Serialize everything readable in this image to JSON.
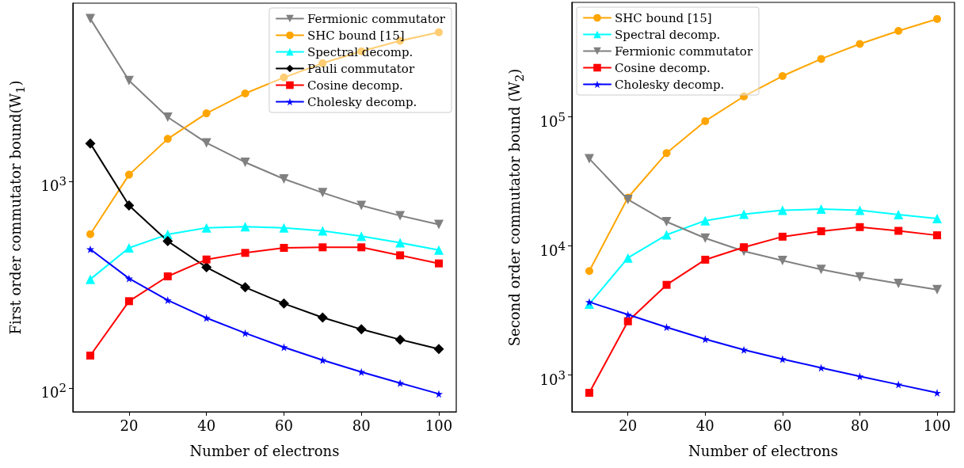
{
  "chart_data": [
    {
      "type": "line",
      "xlabel": "Number of electrons",
      "ylabel": "First order commutator bound(W$_{1}$)",
      "x": [
        10,
        20,
        30,
        40,
        50,
        60,
        70,
        80,
        90,
        100
      ],
      "xlim": [
        5.5,
        104.5
      ],
      "xticks": [
        20,
        40,
        60,
        80,
        100
      ],
      "log": "y",
      "ylim": [
        77,
        7300
      ],
      "yticks": [
        {
          "value": 100,
          "label": "10$^{2}$"
        },
        {
          "value": 1000,
          "label": "10$^{3}$"
        }
      ],
      "grid": false,
      "legend": "top right",
      "series": [
        {
          "name": "Fermionic commutator",
          "color": "#808080",
          "marker": "triangle-down",
          "values": [
            6140,
            3080,
            2050,
            1540,
            1240,
            1030,
            884,
            767,
            684,
            620
          ]
        },
        {
          "name": "SHC bound [15]",
          "color": "#ffa500",
          "marker": "circle",
          "values": [
            557,
            1080,
            1610,
            2140,
            2670,
            3190,
            3740,
            4270,
            4800,
            5280
          ]
        },
        {
          "name": "Spectral decomp.",
          "color": "#00ffff",
          "marker": "triangle",
          "values": [
            337,
            478,
            555,
            598,
            606,
            598,
            578,
            545,
            506,
            467
          ]
        },
        {
          "name": "Pauli commutator",
          "color": "#000000",
          "marker": "diamond",
          "values": [
            1530,
            767,
            515,
            385,
            308,
            257,
            220,
            193,
            172,
            155
          ]
        },
        {
          "name": "Cosine decomp.",
          "color": "#ff0000",
          "marker": "square",
          "values": [
            144,
            264,
            348,
            420,
            452,
            478,
            481,
            481,
            440,
            402
          ]
        },
        {
          "name": "Cholesky decomp.",
          "color": "#0000ff",
          "marker": "star",
          "values": [
            471,
            340,
            267,
            219,
            185,
            158,
            137,
            120,
            106,
            94
          ]
        }
      ]
    },
    {
      "type": "line",
      "xlabel": "Number of electrons",
      "ylabel": "Second order commutator bound (W$_{2}$)",
      "x": [
        10,
        20,
        30,
        40,
        50,
        60,
        70,
        80,
        90,
        100
      ],
      "xlim": [
        5.5,
        104.5
      ],
      "xticks": [
        20,
        40,
        60,
        80,
        100
      ],
      "log": "y",
      "ylim": [
        520,
        770000
      ],
      "yticks": [
        {
          "value": 1000,
          "label": "10$^{3}$"
        },
        {
          "value": 10000,
          "label": "10$^{4}$"
        },
        {
          "value": 100000,
          "label": "10$^{5}$"
        }
      ],
      "grid": false,
      "legend": "top left",
      "series": [
        {
          "name": "SHC bound [15]",
          "color": "#ffa500",
          "marker": "circle",
          "values": [
            6400,
            23700,
            52400,
            92700,
            144000,
            207000,
            281000,
            367000,
            463000,
            573000
          ]
        },
        {
          "name": "Spectral decomp.",
          "color": "#00ffff",
          "marker": "triangle",
          "values": [
            3550,
            8090,
            12200,
            15700,
            17600,
            18900,
            19300,
            18900,
            17500,
            16300
          ]
        },
        {
          "name": "Fermionic commutator",
          "color": "#808080",
          "marker": "triangle-down",
          "values": [
            47400,
            22900,
            15400,
            11500,
            9100,
            7720,
            6580,
            5760,
            5120,
            4590
          ]
        },
        {
          "name": "Cosine decomp.",
          "color": "#ff0000",
          "marker": "square",
          "values": [
            729,
            2610,
            5000,
            7830,
            9780,
            11800,
            13000,
            14000,
            13100,
            12100
          ]
        },
        {
          "name": "Cholesky decomp.",
          "color": "#0000ff",
          "marker": "star",
          "values": [
            3680,
            2940,
            2350,
            1900,
            1570,
            1330,
            1140,
            977,
            845,
            729
          ]
        }
      ]
    }
  ]
}
